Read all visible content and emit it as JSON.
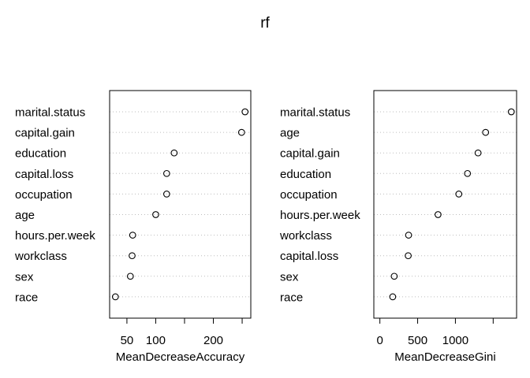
{
  "title": "rf",
  "chart_data": [
    {
      "type": "scatter",
      "variant": "dotchart",
      "xlabel": "MeanDecreaseAccuracy",
      "xlim": [
        20,
        265
      ],
      "ticks": [
        50,
        100,
        150,
        200,
        250
      ],
      "tick_labels": [
        "50",
        "100",
        "",
        "200",
        ""
      ],
      "grid": "dotted horizontal",
      "categories": [
        "marital.status",
        "capital.gain",
        "education",
        "capital.loss",
        "occupation",
        "age",
        "hours.per.week",
        "workclass",
        "sex",
        "race"
      ],
      "values": [
        255,
        249,
        132,
        119,
        119,
        100,
        60,
        59,
        56,
        30
      ]
    },
    {
      "type": "scatter",
      "variant": "dotchart",
      "xlabel": "MeanDecreaseGini",
      "xlim": [
        -80,
        1810
      ],
      "ticks": [
        0,
        500,
        1000,
        1500
      ],
      "tick_labels": [
        "0",
        "500",
        "1000",
        ""
      ],
      "grid": "dotted horizontal",
      "categories": [
        "marital.status",
        "age",
        "capital.gain",
        "education",
        "occupation",
        "hours.per.week",
        "workclass",
        "capital.loss",
        "sex",
        "race"
      ],
      "values": [
        1740,
        1400,
        1300,
        1160,
        1045,
        770,
        380,
        375,
        190,
        170
      ]
    }
  ]
}
